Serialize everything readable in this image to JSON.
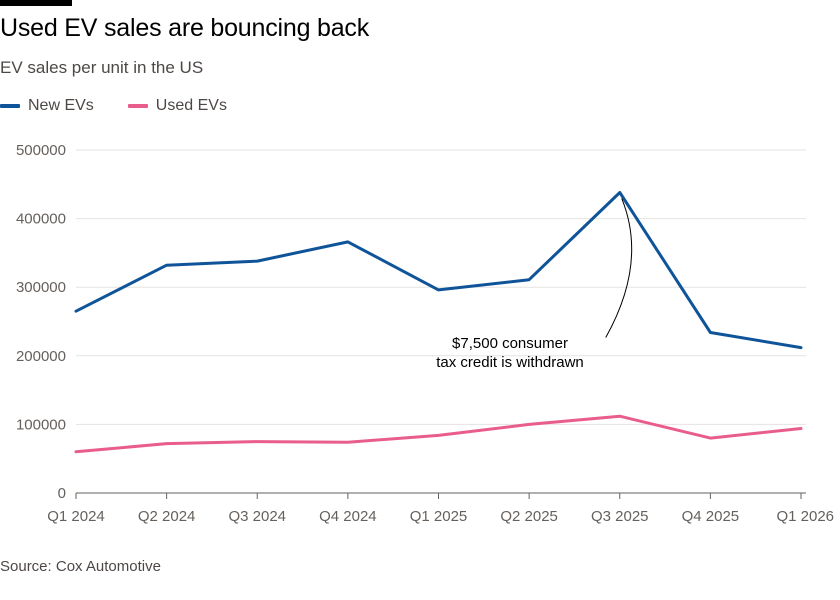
{
  "header": {
    "title": "Used EV sales are bouncing back",
    "subtitle": "EV sales per unit in the US"
  },
  "footer": {
    "source": "Source: Cox Automotive"
  },
  "colors": {
    "new_evs": "#0f5499",
    "used_evs": "#e95d8c",
    "grid": "#e6e3e0",
    "baseline": "#66605c"
  },
  "chart_data": {
    "type": "line",
    "title": "Used EV sales are bouncing back",
    "subtitle": "EV sales per unit in the US",
    "xlabel": "",
    "ylabel": "",
    "categories": [
      "Q1 2024",
      "Q2 2024",
      "Q3 2024",
      "Q4 2024",
      "Q1 2025",
      "Q2 2025",
      "Q3 2025",
      "Q4 2025",
      "Q1 2026"
    ],
    "series": [
      {
        "name": "New EVs",
        "color": "#0f5499",
        "values": [
          265000,
          332000,
          338000,
          366000,
          296000,
          311000,
          438000,
          234000,
          212000
        ]
      },
      {
        "name": "Used EVs",
        "color": "#e95d8c",
        "values": [
          60000,
          72000,
          75000,
          74000,
          84000,
          100000,
          112000,
          80000,
          94000
        ]
      }
    ],
    "yticks": [
      0,
      100000,
      200000,
      300000,
      400000,
      500000
    ],
    "ylim": [
      0,
      500000
    ],
    "grid": true,
    "legend": "top-left",
    "annotations": [
      {
        "lines": [
          "$7,500 consumer",
          "tax credit is withdrawn"
        ],
        "x": "Q3 2025",
        "y": 438000
      }
    ]
  }
}
